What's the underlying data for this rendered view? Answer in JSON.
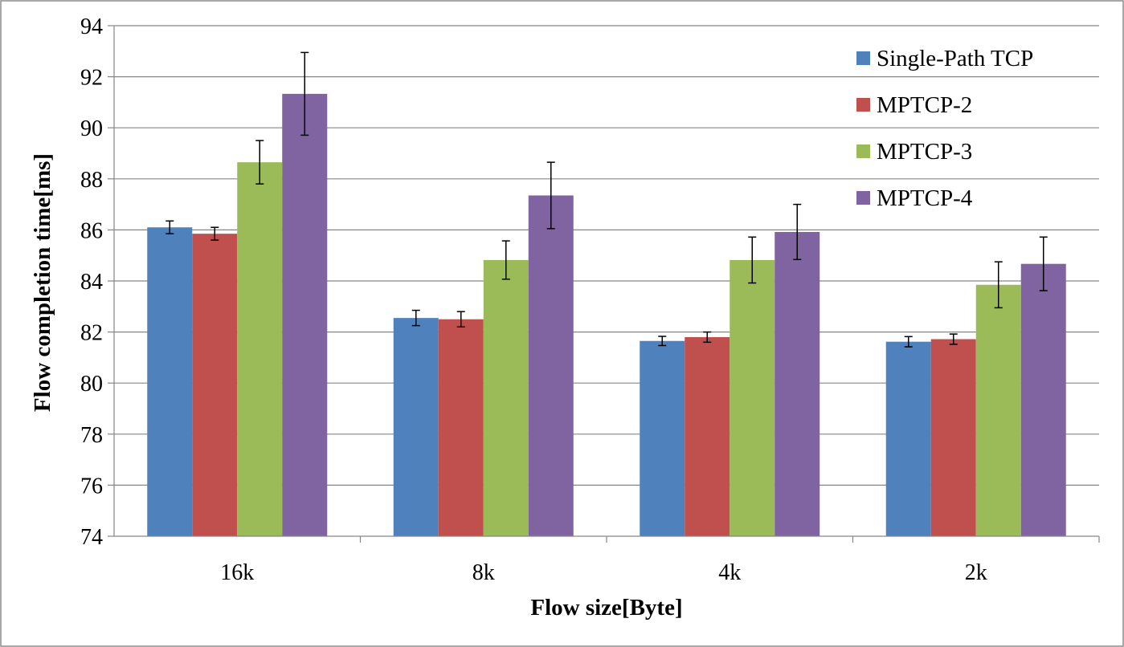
{
  "chart_data": {
    "type": "bar",
    "title": "",
    "xlabel": "Flow size[Byte]",
    "ylabel": "Flow completion time[ms]",
    "ylim": [
      74,
      94
    ],
    "yticks": [
      74,
      76,
      78,
      80,
      82,
      84,
      86,
      88,
      90,
      92,
      94
    ],
    "categories": [
      "16k",
      "8k",
      "4k",
      "2k"
    ],
    "grid": "horizontal",
    "legend_position": "top-right",
    "error_bars": true,
    "series": [
      {
        "name": "Single-Path TCP",
        "color": "#4F81BD",
        "values": [
          86.1,
          82.55,
          81.65,
          81.62
        ],
        "errors": [
          0.25,
          0.3,
          0.18,
          0.2
        ]
      },
      {
        "name": "MPTCP-2",
        "color": "#C0504D",
        "values": [
          85.85,
          82.5,
          81.8,
          81.72
        ],
        "errors": [
          0.25,
          0.3,
          0.2,
          0.2
        ]
      },
      {
        "name": "MPTCP-3",
        "color": "#9BBB59",
        "values": [
          88.65,
          84.82,
          84.82,
          83.85
        ],
        "errors": [
          0.85,
          0.75,
          0.9,
          0.9
        ]
      },
      {
        "name": "MPTCP-4",
        "color": "#8064A2",
        "values": [
          91.33,
          87.35,
          85.92,
          84.67
        ],
        "errors": [
          1.62,
          1.3,
          1.08,
          1.05
        ]
      }
    ]
  }
}
